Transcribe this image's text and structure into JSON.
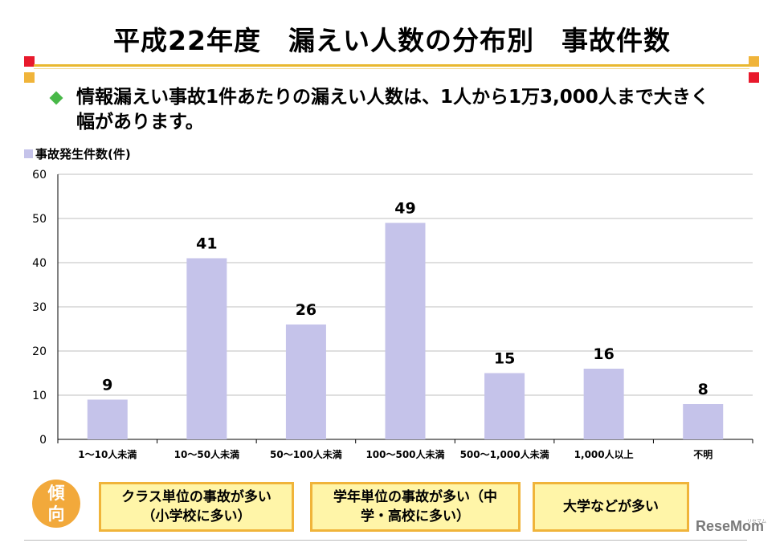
{
  "title": "平成22年度　漏えい人数の分布別　事故件数",
  "headline": "情報漏えい事故1件あたりの漏えい人数は、1人から1万3,000人まで大きく幅があります。",
  "legend": "事故発生件数(件)",
  "tendency_label": "傾向",
  "notes": [
    "クラス単位の事故が多い（小学校に多い）",
    "学年単位の事故が多い（中学・高校に多い）",
    "大学などが多い"
  ],
  "logo": "ReseMom",
  "logo_sub": "リセマム",
  "colors": {
    "bar": "#c5c3ea",
    "gold": "#e8b830",
    "red_square": "#e8192c",
    "orange_square": "#f0b43a",
    "bullet": "#48b848",
    "note_fill": "#fff5a8",
    "circle": "#f2a93b"
  },
  "chart_data": {
    "type": "bar",
    "categories": [
      "1～10人未満",
      "10～50人未満",
      "50～100人未満",
      "100～500人未満",
      "500～1,000人未満",
      "1,000人以上",
      "不明"
    ],
    "values": [
      9,
      41,
      26,
      49,
      15,
      16,
      8
    ],
    "ylabel": "事故発生件数(件)",
    "ylim": [
      0,
      60
    ],
    "yticks": [
      0,
      10,
      20,
      30,
      40,
      50,
      60
    ],
    "grid": true,
    "legend_position": "top-left"
  }
}
